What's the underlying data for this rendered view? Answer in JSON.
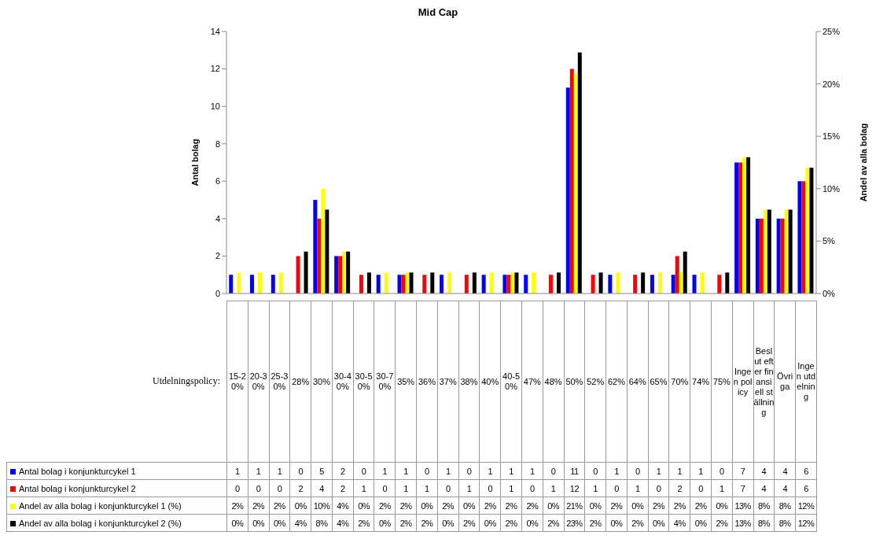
{
  "chart_data": {
    "type": "bar",
    "title": "Mid Cap",
    "xlabel": "Utdelningspolicy:",
    "ylabel": "Antal bolag",
    "y2label": "Andel av alla bolag",
    "categories": [
      "15-20%",
      "20-30%",
      "25-30%",
      "28%",
      "30%",
      "30-40%",
      "30-50%",
      "30-70%",
      "35%",
      "36%",
      "37%",
      "38%",
      "40%",
      "40-50%",
      "47%",
      "48%",
      "50%",
      "52%",
      "62%",
      "64%",
      "65%",
      "70%",
      "74%",
      "75%",
      "Ingen policy",
      "Beslut efter finansiell ställning",
      "Övriga",
      "Ingen utdelning"
    ],
    "series": [
      {
        "name": "Antal bolag i konjunkturcykel 1",
        "color": "#0000ff",
        "values": [
          1,
          1,
          1,
          0,
          5,
          2,
          0,
          1,
          1,
          0,
          1,
          0,
          1,
          1,
          1,
          0,
          11,
          0,
          1,
          0,
          1,
          1,
          1,
          0,
          7,
          4,
          4,
          6
        ],
        "value_labels": [
          "1",
          "1",
          "1",
          "0",
          "5",
          "2",
          "0",
          "1",
          "1",
          "0",
          "1",
          "0",
          "1",
          "1",
          "1",
          "0",
          "11",
          "0",
          "1",
          "0",
          "1",
          "1",
          "1",
          "0",
          "7",
          "4",
          "4",
          "6"
        ]
      },
      {
        "name": "Antal bolag i konjunkturcykel 2",
        "color": "#ff0000",
        "values": [
          0,
          0,
          0,
          2,
          4,
          2,
          1,
          0,
          1,
          1,
          0,
          1,
          0,
          1,
          0,
          1,
          12,
          1,
          0,
          1,
          0,
          2,
          0,
          1,
          7,
          4,
          4,
          6
        ],
        "value_labels": [
          "0",
          "0",
          "0",
          "2",
          "4",
          "2",
          "1",
          "0",
          "1",
          "1",
          "0",
          "1",
          "0",
          "1",
          "0",
          "1",
          "12",
          "1",
          "0",
          "1",
          "0",
          "2",
          "0",
          "1",
          "7",
          "4",
          "4",
          "6"
        ]
      },
      {
        "name": "Andel av alla bolag i konjunkturcykel 1 (%)",
        "color": "#ffff00",
        "axis": "y2",
        "values": [
          2,
          2,
          2,
          0,
          10,
          4,
          0,
          2,
          2,
          0,
          2,
          0,
          2,
          2,
          2,
          0,
          21,
          0,
          2,
          0,
          2,
          2,
          2,
          0,
          13,
          8,
          8,
          12
        ],
        "value_labels": [
          "2%",
          "2%",
          "2%",
          "0%",
          "10%",
          "4%",
          "0%",
          "2%",
          "2%",
          "0%",
          "2%",
          "0%",
          "2%",
          "2%",
          "2%",
          "0%",
          "21%",
          "0%",
          "2%",
          "0%",
          "2%",
          "2%",
          "2%",
          "0%",
          "13%",
          "8%",
          "8%",
          "12%"
        ]
      },
      {
        "name": "Andel av alla bolag i konjunkturcykel 2 (%)",
        "color": "#000000",
        "axis": "y2",
        "values": [
          0,
          0,
          0,
          4,
          8,
          4,
          2,
          0,
          2,
          2,
          0,
          2,
          0,
          2,
          0,
          2,
          23,
          2,
          0,
          2,
          0,
          4,
          0,
          2,
          13,
          8,
          8,
          12
        ],
        "value_labels": [
          "0%",
          "0%",
          "0%",
          "4%",
          "8%",
          "4%",
          "2%",
          "0%",
          "2%",
          "2%",
          "0%",
          "2%",
          "0%",
          "2%",
          "0%",
          "2%",
          "23%",
          "2%",
          "0%",
          "2%",
          "0%",
          "4%",
          "0%",
          "2%",
          "13%",
          "8%",
          "8%",
          "12%"
        ]
      }
    ],
    "ylim": [
      0,
      14
    ],
    "yticks": [
      0,
      2,
      4,
      6,
      8,
      10,
      12,
      14
    ],
    "y2lim": [
      0,
      25
    ],
    "y2ticks": [
      {
        "value": 0,
        "label": "0%"
      },
      {
        "value": 5,
        "label": "5%"
      },
      {
        "value": 10,
        "label": "10%"
      },
      {
        "value": 15,
        "label": "15%"
      },
      {
        "value": 20,
        "label": "20%"
      },
      {
        "value": 25,
        "label": "25%"
      }
    ],
    "grid": false,
    "legend": "bottom"
  }
}
